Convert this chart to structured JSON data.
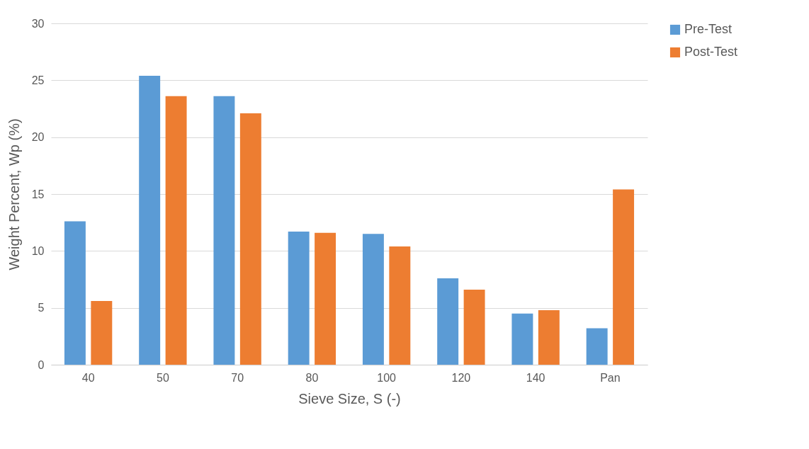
{
  "chart_data": {
    "type": "bar",
    "xlabel": "Sieve Size, S (-)",
    "ylabel": "Weight Percent, Wp (%)",
    "categories": [
      "40",
      "50",
      "70",
      "80",
      "100",
      "120",
      "140",
      "Pan"
    ],
    "series": [
      {
        "name": "Pre-Test",
        "color": "#5b9bd5",
        "values": [
          12.6,
          25.4,
          23.6,
          11.7,
          11.5,
          7.6,
          4.5,
          3.2
        ]
      },
      {
        "name": "Post-Test",
        "color": "#ed7d31",
        "values": [
          5.6,
          23.6,
          22.1,
          11.6,
          10.4,
          6.6,
          4.8,
          15.4
        ]
      }
    ],
    "ylim": [
      0,
      30
    ],
    "yticks": [
      0,
      5,
      10,
      15,
      20,
      25,
      30
    ],
    "grid": "y",
    "legend": "right"
  }
}
